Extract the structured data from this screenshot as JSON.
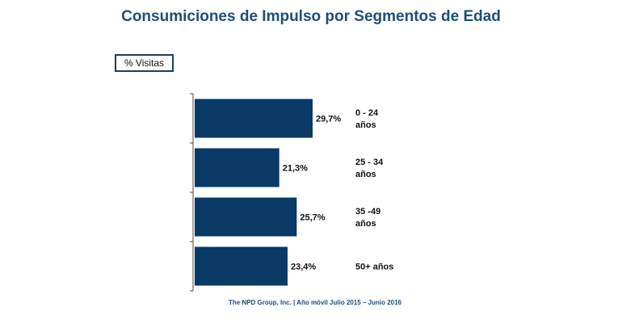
{
  "title": "Consumiciones de Impulso por Segmentos de Edad",
  "metric_label": "% Visitas",
  "footer": "The NPD Group, Inc.  |  Año móvil Julio 2015 – Junio 2016",
  "colors": {
    "bar": "#0a3a66",
    "title": "#1f4e79",
    "axis": "#4a4a4a"
  },
  "chart_data": {
    "type": "bar",
    "orientation": "horizontal",
    "categories": [
      [
        "0 - 24",
        "años"
      ],
      [
        "25 - 34",
        "años"
      ],
      [
        "35 -49",
        "años"
      ],
      [
        "50+ años"
      ]
    ],
    "values": [
      29.7,
      21.3,
      25.7,
      23.4
    ],
    "value_labels": [
      "29,7%",
      "21,3%",
      "25,7%",
      "23,4%"
    ],
    "xlim": [
      0,
      100
    ]
  }
}
